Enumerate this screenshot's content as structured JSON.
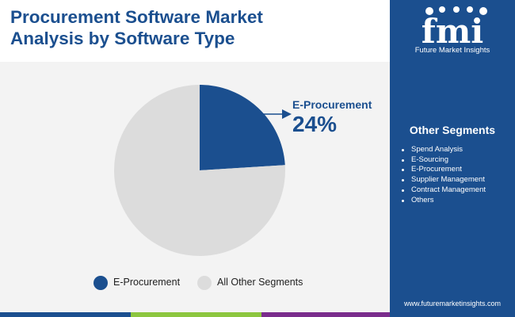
{
  "header": {
    "title_line1": "Procurement Software Market",
    "title_line2": "Analysis by Software Type"
  },
  "logo": {
    "text": "fmi",
    "caption": "Future Market Insights"
  },
  "sidebar": {
    "title": "Other Segments",
    "items": [
      "Spend Analysis",
      "E-Sourcing",
      "E-Procurement",
      "Supplier Management",
      "Contract Management",
      "Others"
    ],
    "url": "www.futuremarketinsights.com"
  },
  "callout": {
    "label": "E-Procurement",
    "value": "24%"
  },
  "chart_data": {
    "type": "pie",
    "slices": [
      {
        "label": "E-Procurement",
        "value": 24,
        "color": "#1b4f8f"
      },
      {
        "label": "All Other Segments",
        "value": 76,
        "color": "#dcdcdc"
      }
    ],
    "legend_position": "bottom"
  },
  "colors": {
    "brand_blue": "#1b4f8f",
    "other_gray": "#dcdcdc",
    "bottom_bar": [
      "#1b4f8f",
      "#8cc63f",
      "#7a2c8c",
      "#1b4f8f"
    ]
  }
}
